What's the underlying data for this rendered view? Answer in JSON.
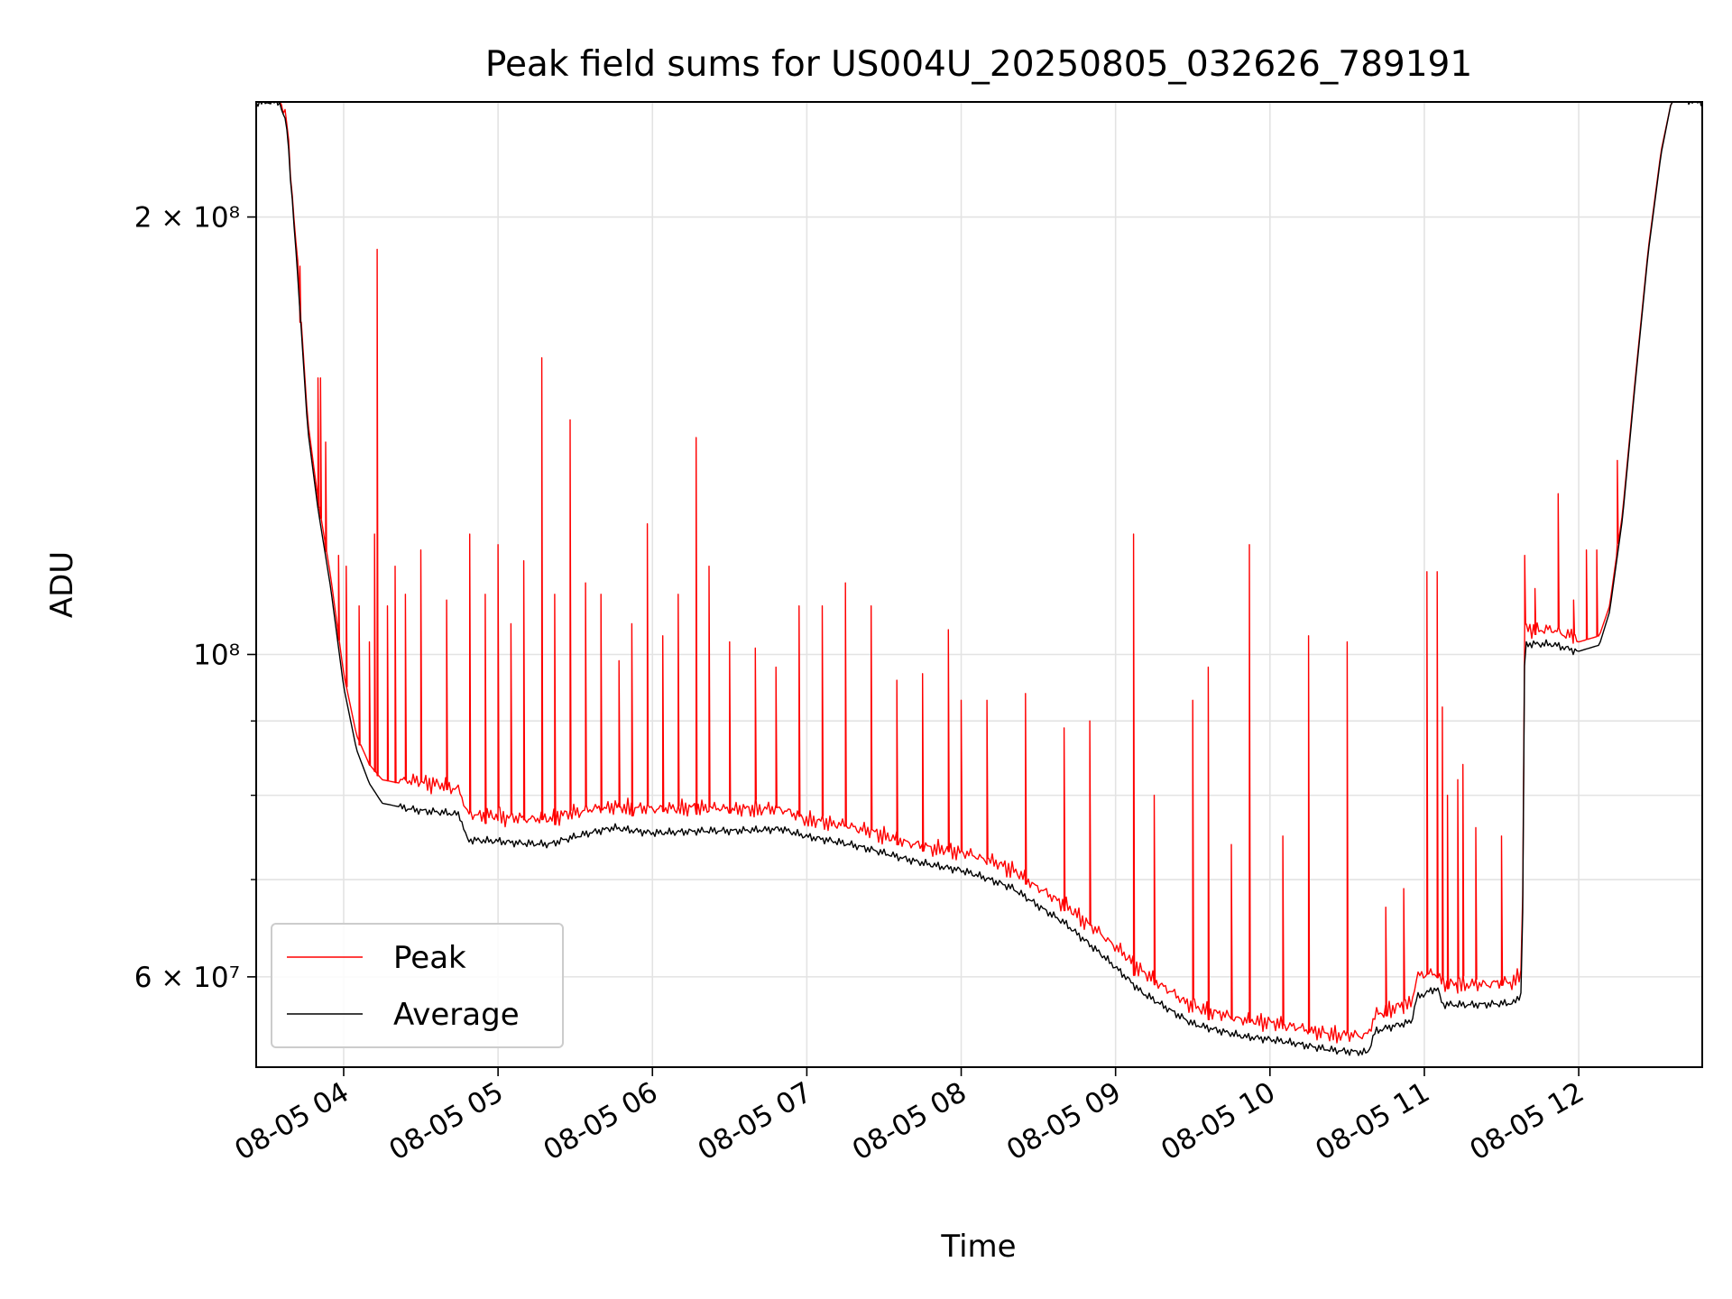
{
  "chart_data": {
    "type": "line",
    "title": "Peak field sums for US004U_20250805_032626_789191",
    "xlabel": "Time",
    "ylabel": "ADU",
    "yscale": "log",
    "ylim": [
      52000000,
      240000000
    ],
    "xlim": [
      "2025-08-05 03:26",
      "2025-08-05 12:48"
    ],
    "x_ticks": [
      "2025-08-05 04:00",
      "2025-08-05 05:00",
      "2025-08-05 06:00",
      "2025-08-05 07:00",
      "2025-08-05 08:00",
      "2025-08-05 09:00",
      "2025-08-05 10:00",
      "2025-08-05 11:00",
      "2025-08-05 12:00"
    ],
    "x_tick_labels": [
      "08-05 04",
      "08-05 05",
      "08-05 06",
      "08-05 07",
      "08-05 08",
      "08-05 09",
      "08-05 10",
      "08-05 11",
      "08-05 12"
    ],
    "y_tick_labels": [
      {
        "value": 200000000,
        "label": "2 × 10⁸"
      },
      {
        "value": 100000000,
        "label": "10⁸"
      },
      {
        "value": 60000000,
        "label": "6 × 10⁷"
      }
    ],
    "y_minor_ticks": [
      70000000,
      80000000,
      90000000
    ],
    "grid": true,
    "legend": "lower-left",
    "series": [
      {
        "name": "Peak",
        "color": "#ff0000",
        "baseline": [
          [
            "2025-08-05 03:26",
            240000000
          ],
          [
            "2025-08-05 03:35",
            240000000
          ],
          [
            "2025-08-05 03:38",
            230000000
          ],
          [
            "2025-08-05 03:40",
            205000000
          ],
          [
            "2025-08-05 03:43",
            175000000
          ],
          [
            "2025-08-05 03:46",
            145000000
          ],
          [
            "2025-08-05 03:50",
            128000000
          ],
          [
            "2025-08-05 03:55",
            113000000
          ],
          [
            "2025-08-05 04:00",
            97000000
          ],
          [
            "2025-08-05 04:05",
            88000000
          ],
          [
            "2025-08-05 04:10",
            84000000
          ],
          [
            "2025-08-05 04:15",
            82000000
          ],
          [
            "2025-08-05 04:30",
            81000000
          ],
          [
            "2025-08-05 04:45",
            80000000
          ],
          [
            "2025-08-05 04:48",
            77000000
          ],
          [
            "2025-08-05 05:00",
            77000000
          ],
          [
            "2025-08-05 05:20",
            76500000
          ],
          [
            "2025-08-05 05:45",
            78000000
          ],
          [
            "2025-08-05 06:00",
            78000000
          ],
          [
            "2025-08-05 06:30",
            77500000
          ],
          [
            "2025-08-05 06:50",
            78000000
          ],
          [
            "2025-08-05 07:00",
            76500000
          ],
          [
            "2025-08-05 07:30",
            74500000
          ],
          [
            "2025-08-05 08:00",
            72500000
          ],
          [
            "2025-08-05 08:20",
            70500000
          ],
          [
            "2025-08-05 08:40",
            67000000
          ],
          [
            "2025-08-05 08:55",
            63500000
          ],
          [
            "2025-08-05 09:10",
            60000000
          ],
          [
            "2025-08-05 09:30",
            57000000
          ],
          [
            "2025-08-05 09:50",
            55500000
          ],
          [
            "2025-08-05 10:10",
            55000000
          ],
          [
            "2025-08-05 10:25",
            54500000
          ],
          [
            "2025-08-05 10:38",
            54300000
          ],
          [
            "2025-08-05 10:41",
            56000000
          ],
          [
            "2025-08-05 10:55",
            57000000
          ],
          [
            "2025-08-05 10:57",
            59500000
          ],
          [
            "2025-08-05 11:05",
            60000000
          ],
          [
            "2025-08-05 11:07",
            59000000
          ],
          [
            "2025-08-05 11:35",
            59000000
          ],
          [
            "2025-08-05 11:38",
            60000000
          ],
          [
            "2025-08-05 11:39",
            103000000
          ],
          [
            "2025-08-05 11:50",
            103000000
          ],
          [
            "2025-08-05 12:00",
            102000000
          ],
          [
            "2025-08-05 12:08",
            103000000
          ],
          [
            "2025-08-05 12:12",
            108000000
          ],
          [
            "2025-08-05 12:17",
            125000000
          ],
          [
            "2025-08-05 12:22",
            155000000
          ],
          [
            "2025-08-05 12:27",
            190000000
          ],
          [
            "2025-08-05 12:32",
            222000000
          ],
          [
            "2025-08-05 12:36",
            240000000
          ],
          [
            "2025-08-05 12:48",
            240000000
          ]
        ],
        "spikes": [
          [
            "2025-08-05 03:43",
            185000000
          ],
          [
            "2025-08-05 03:50",
            155000000
          ],
          [
            "2025-08-05 03:51",
            155000000
          ],
          [
            "2025-08-05 03:53",
            140000000
          ],
          [
            "2025-08-05 03:58",
            117000000
          ],
          [
            "2025-08-05 04:01",
            115000000
          ],
          [
            "2025-08-05 04:06",
            108000000
          ],
          [
            "2025-08-05 04:10",
            102000000
          ],
          [
            "2025-08-05 04:12",
            121000000
          ],
          [
            "2025-08-05 04:13",
            190000000
          ],
          [
            "2025-08-05 04:17",
            108000000
          ],
          [
            "2025-08-05 04:20",
            115000000
          ],
          [
            "2025-08-05 04:24",
            110000000
          ],
          [
            "2025-08-05 04:30",
            118000000
          ],
          [
            "2025-08-05 04:40",
            109000000
          ],
          [
            "2025-08-05 04:49",
            121000000
          ],
          [
            "2025-08-05 04:55",
            110000000
          ],
          [
            "2025-08-05 05:00",
            119000000
          ],
          [
            "2025-08-05 05:05",
            105000000
          ],
          [
            "2025-08-05 05:10",
            116000000
          ],
          [
            "2025-08-05 05:17",
            160000000
          ],
          [
            "2025-08-05 05:22",
            110000000
          ],
          [
            "2025-08-05 05:28",
            145000000
          ],
          [
            "2025-08-05 05:34",
            112000000
          ],
          [
            "2025-08-05 05:40",
            110000000
          ],
          [
            "2025-08-05 05:47",
            99000000
          ],
          [
            "2025-08-05 05:52",
            105000000
          ],
          [
            "2025-08-05 05:58",
            123000000
          ],
          [
            "2025-08-05 06:04",
            103000000
          ],
          [
            "2025-08-05 06:10",
            110000000
          ],
          [
            "2025-08-05 06:17",
            141000000
          ],
          [
            "2025-08-05 06:22",
            115000000
          ],
          [
            "2025-08-05 06:30",
            102000000
          ],
          [
            "2025-08-05 06:40",
            101000000
          ],
          [
            "2025-08-05 06:48",
            98000000
          ],
          [
            "2025-08-05 06:57",
            108000000
          ],
          [
            "2025-08-05 07:06",
            108000000
          ],
          [
            "2025-08-05 07:15",
            112000000
          ],
          [
            "2025-08-05 07:25",
            108000000
          ],
          [
            "2025-08-05 07:35",
            96000000
          ],
          [
            "2025-08-05 07:45",
            97000000
          ],
          [
            "2025-08-05 07:55",
            104000000
          ],
          [
            "2025-08-05 08:00",
            93000000
          ],
          [
            "2025-08-05 08:10",
            93000000
          ],
          [
            "2025-08-05 08:25",
            94000000
          ],
          [
            "2025-08-05 08:40",
            89000000
          ],
          [
            "2025-08-05 08:50",
            90000000
          ],
          [
            "2025-08-05 09:07",
            121000000
          ],
          [
            "2025-08-05 09:15",
            80000000
          ],
          [
            "2025-08-05 09:30",
            93000000
          ],
          [
            "2025-08-05 09:36",
            98000000
          ],
          [
            "2025-08-05 09:45",
            74000000
          ],
          [
            "2025-08-05 09:52",
            119000000
          ],
          [
            "2025-08-05 10:05",
            75000000
          ],
          [
            "2025-08-05 10:15",
            103000000
          ],
          [
            "2025-08-05 10:30",
            102000000
          ],
          [
            "2025-08-05 10:45",
            67000000
          ],
          [
            "2025-08-05 10:52",
            69000000
          ],
          [
            "2025-08-05 11:01",
            114000000
          ],
          [
            "2025-08-05 11:05",
            114000000
          ],
          [
            "2025-08-05 11:07",
            92000000
          ],
          [
            "2025-08-05 11:09",
            80000000
          ],
          [
            "2025-08-05 11:13",
            82000000
          ],
          [
            "2025-08-05 11:15",
            84000000
          ],
          [
            "2025-08-05 11:20",
            76000000
          ],
          [
            "2025-08-05 11:30",
            75000000
          ],
          [
            "2025-08-05 11:39",
            117000000
          ],
          [
            "2025-08-05 11:43",
            111000000
          ],
          [
            "2025-08-05 11:52",
            129000000
          ],
          [
            "2025-08-05 11:58",
            109000000
          ],
          [
            "2025-08-05 12:03",
            118000000
          ],
          [
            "2025-08-05 12:07",
            118000000
          ],
          [
            "2025-08-05 12:15",
            136000000
          ]
        ]
      },
      {
        "name": "Average",
        "color": "#000000",
        "baseline": [
          [
            "2025-08-05 03:26",
            240000000
          ],
          [
            "2025-08-05 03:35",
            240000000
          ],
          [
            "2025-08-05 03:38",
            230000000
          ],
          [
            "2025-08-05 03:40",
            205000000
          ],
          [
            "2025-08-05 03:43",
            173000000
          ],
          [
            "2025-08-05 03:46",
            143000000
          ],
          [
            "2025-08-05 03:50",
            126000000
          ],
          [
            "2025-08-05 03:55",
            111000000
          ],
          [
            "2025-08-05 04:00",
            95000000
          ],
          [
            "2025-08-05 04:05",
            86000000
          ],
          [
            "2025-08-05 04:10",
            81500000
          ],
          [
            "2025-08-05 04:15",
            79000000
          ],
          [
            "2025-08-05 04:30",
            78000000
          ],
          [
            "2025-08-05 04:45",
            77500000
          ],
          [
            "2025-08-05 04:48",
            74500000
          ],
          [
            "2025-08-05 05:00",
            74500000
          ],
          [
            "2025-08-05 05:20",
            74000000
          ],
          [
            "2025-08-05 05:45",
            76000000
          ],
          [
            "2025-08-05 06:00",
            75500000
          ],
          [
            "2025-08-05 06:30",
            75500000
          ],
          [
            "2025-08-05 06:50",
            76000000
          ],
          [
            "2025-08-05 07:00",
            75000000
          ],
          [
            "2025-08-05 07:30",
            73000000
          ],
          [
            "2025-08-05 08:00",
            71000000
          ],
          [
            "2025-08-05 08:20",
            69000000
          ],
          [
            "2025-08-05 08:40",
            65500000
          ],
          [
            "2025-08-05 08:55",
            62000000
          ],
          [
            "2025-08-05 09:10",
            58500000
          ],
          [
            "2025-08-05 09:30",
            55800000
          ],
          [
            "2025-08-05 09:50",
            54500000
          ],
          [
            "2025-08-05 10:10",
            54000000
          ],
          [
            "2025-08-05 10:25",
            53500000
          ],
          [
            "2025-08-05 10:38",
            53200000
          ],
          [
            "2025-08-05 10:41",
            55000000
          ],
          [
            "2025-08-05 10:55",
            55800000
          ],
          [
            "2025-08-05 10:57",
            58000000
          ],
          [
            "2025-08-05 11:05",
            59000000
          ],
          [
            "2025-08-05 11:07",
            57500000
          ],
          [
            "2025-08-05 11:35",
            57500000
          ],
          [
            "2025-08-05 11:38",
            58500000
          ],
          [
            "2025-08-05 11:39",
            101500000
          ],
          [
            "2025-08-05 11:50",
            101500000
          ],
          [
            "2025-08-05 12:00",
            100500000
          ],
          [
            "2025-08-05 12:08",
            101500000
          ],
          [
            "2025-08-05 12:12",
            107000000
          ],
          [
            "2025-08-05 12:17",
            124000000
          ],
          [
            "2025-08-05 12:22",
            154000000
          ],
          [
            "2025-08-05 12:27",
            189000000
          ],
          [
            "2025-08-05 12:32",
            221000000
          ],
          [
            "2025-08-05 12:36",
            240000000
          ],
          [
            "2025-08-05 12:48",
            240000000
          ]
        ]
      }
    ]
  }
}
